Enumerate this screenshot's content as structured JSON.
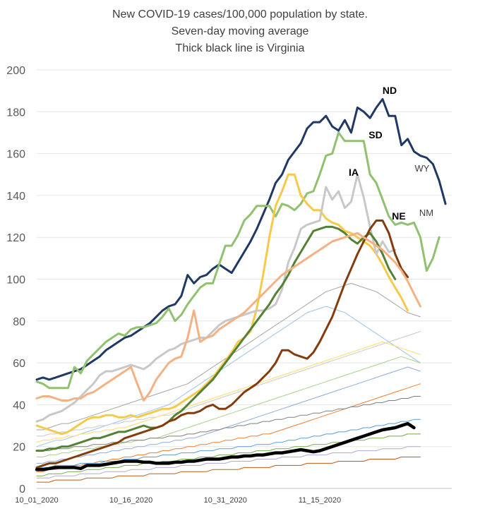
{
  "chart_data": {
    "type": "line",
    "title": "New COVID-19 cases/100,000 population by state.",
    "subtitle_lines": [
      "Seven-day moving average",
      "Thick black line is Virginia"
    ],
    "xlabel": "",
    "ylabel": "",
    "ylim": [
      0,
      200
    ],
    "yticks": [
      "0",
      "20",
      "40",
      "60",
      "80",
      "100",
      "120",
      "140",
      "160",
      "180",
      "200"
    ],
    "xticks": [
      "10_01_2020",
      "10_16_2020",
      "10_31_2020",
      "11_15_2020"
    ],
    "x_count": 67,
    "grid": true,
    "legend": "none",
    "annotations": [
      "ND",
      "SD",
      "IA",
      "WY",
      "NE",
      "NM"
    ],
    "series": [
      {
        "name": "ND",
        "color": "#1f3864",
        "width": 3,
        "values": [
          52,
          53,
          52,
          53,
          54,
          55,
          56,
          57,
          59,
          61,
          63,
          66,
          68,
          70,
          72,
          73,
          75,
          77,
          79,
          82,
          85,
          87,
          88,
          92,
          102,
          98,
          101,
          102,
          105,
          107,
          105,
          103,
          108,
          113,
          118,
          124,
          131,
          138,
          146,
          150,
          157,
          161,
          165,
          172,
          175,
          175,
          178,
          173,
          171,
          176,
          170,
          182,
          180,
          177,
          182,
          186,
          178,
          178,
          164,
          167,
          161,
          159,
          158,
          155,
          147,
          136
        ]
      },
      {
        "name": "SD",
        "color": "#8fc16f",
        "width": 3,
        "values": [
          51,
          50,
          48,
          48,
          48,
          48,
          58,
          55,
          61,
          64,
          67,
          70,
          72,
          74,
          73,
          76,
          77,
          77,
          78,
          79,
          82,
          86,
          80,
          83,
          88,
          92,
          96,
          98,
          98,
          107,
          116,
          116,
          121,
          128,
          131,
          135,
          135,
          135,
          130,
          136,
          135,
          133,
          136,
          141,
          142,
          150,
          159,
          160,
          170,
          166,
          166,
          166,
          166,
          150,
          146,
          138,
          130,
          126,
          127,
          126,
          127,
          120,
          104,
          110,
          120
        ]
      },
      {
        "name": "IA",
        "color": "#f7c948",
        "width": 3,
        "values": [
          30,
          29,
          28,
          27,
          26,
          27,
          29,
          31,
          33,
          34,
          34,
          35,
          35,
          34,
          34,
          35,
          34,
          35,
          36,
          37,
          38,
          38,
          39,
          41,
          43,
          45,
          47,
          50,
          53,
          57,
          61,
          65,
          70,
          72,
          75,
          86,
          102,
          120,
          135,
          142,
          150,
          150,
          140,
          136,
          133,
          133,
          129,
          127,
          126,
          123,
          122,
          120,
          118,
          116,
          112,
          107,
          101,
          96,
          91,
          85
        ]
      },
      {
        "name": "WY",
        "color": "#c8c8c8",
        "width": 3,
        "values": [
          32,
          33,
          35,
          36,
          37,
          39,
          41,
          44,
          47,
          50,
          54,
          56,
          56,
          57,
          58,
          59,
          58,
          57,
          59,
          62,
          64,
          66,
          67,
          69,
          70,
          71,
          72,
          72,
          75,
          78,
          80,
          81,
          82,
          83,
          84,
          85,
          85,
          86,
          88,
          95,
          108,
          115,
          124,
          126,
          127,
          128,
          144,
          138,
          142,
          134,
          137,
          150,
          139,
          125,
          112,
          118,
          113,
          114
        ]
      },
      {
        "name": "NE",
        "color": "#548235",
        "width": 3,
        "values": [
          18,
          18,
          19,
          19,
          20,
          20,
          21,
          22,
          23,
          24,
          24,
          25,
          26,
          27,
          27,
          28,
          29,
          30,
          29,
          29,
          30,
          32,
          35,
          37,
          40,
          43,
          46,
          49,
          52,
          56,
          60,
          64,
          68,
          72,
          76,
          80,
          84,
          88,
          93,
          97,
          102,
          108,
          113,
          118,
          123,
          124,
          125,
          125,
          124,
          122,
          119,
          117,
          120,
          122,
          118,
          112,
          105,
          100
        ]
      },
      {
        "name": "NM",
        "color": "#843c0c",
        "width": 3,
        "values": [
          10,
          11,
          12,
          12,
          13,
          14,
          15,
          16,
          17,
          18,
          19,
          20,
          21,
          22,
          24,
          25,
          26,
          27,
          28,
          29,
          30,
          32,
          33,
          35,
          36,
          36,
          37,
          39,
          40,
          38,
          38,
          40,
          43,
          46,
          48,
          50,
          53,
          56,
          60,
          66,
          66,
          64,
          63,
          62,
          65,
          70,
          76,
          82,
          90,
          98,
          105,
          112,
          118,
          124,
          128,
          128,
          122,
          112,
          105,
          101
        ]
      },
      {
        "name": "",
        "color": "#f4b183",
        "width": 3,
        "values": [
          43,
          44,
          44,
          43,
          42,
          42,
          43,
          43,
          45,
          46,
          48,
          50,
          52,
          54,
          56,
          58,
          50,
          42,
          46,
          52,
          56,
          60,
          62,
          63,
          72,
          85,
          70,
          72,
          73,
          76,
          78,
          80,
          82,
          84,
          87,
          90,
          93,
          96,
          99,
          102,
          104,
          106,
          108,
          110,
          112,
          114,
          116,
          118,
          119,
          120,
          121,
          122,
          120,
          118,
          116,
          114,
          111,
          108,
          104,
          99,
          93,
          87
        ]
      },
      {
        "name": "Virginia",
        "color": "#000000",
        "width": 4.5,
        "values": [
          9,
          9,
          9.5,
          10,
          10,
          10,
          10,
          9.5,
          11,
          11,
          11,
          11.5,
          12,
          12.5,
          13,
          13,
          13,
          12.5,
          12.5,
          12,
          12,
          12,
          12.5,
          12.5,
          13,
          13,
          13.5,
          14,
          14,
          14,
          14.5,
          15,
          15,
          15.5,
          15.5,
          16,
          16,
          16.5,
          17,
          17,
          17.5,
          18,
          18.5,
          18,
          17.5,
          18,
          19,
          20,
          21,
          22,
          23,
          24,
          25,
          26,
          27,
          28,
          28.5,
          29,
          30,
          31,
          29
        ]
      }
    ],
    "background_series": [
      {
        "color": "#a6a6a6",
        "values": [
          28,
          28,
          29,
          30,
          31,
          31,
          32,
          33,
          34,
          35,
          36,
          37,
          38,
          39,
          40,
          41,
          42,
          43,
          44,
          45,
          46,
          47,
          48,
          49,
          50,
          52,
          54,
          56,
          58,
          60,
          62,
          64,
          66,
          68,
          70,
          72,
          74,
          76,
          78,
          80,
          82,
          84,
          86,
          88,
          90,
          92,
          94,
          95,
          96,
          97,
          98,
          97,
          96,
          95,
          94,
          92,
          90,
          88,
          86,
          84,
          83,
          82
        ]
      },
      {
        "color": "#9dc3e6",
        "values": [
          20,
          21,
          22,
          23,
          23,
          24,
          25,
          26,
          27,
          28,
          29,
          30,
          31,
          32,
          33,
          34,
          35,
          36,
          37,
          38,
          39,
          40,
          42,
          44,
          46,
          48,
          50,
          52,
          54,
          56,
          58,
          60,
          62,
          64,
          66,
          68,
          70,
          72,
          74,
          76,
          78,
          80,
          82,
          84,
          85,
          86,
          87,
          86,
          85,
          84,
          82,
          80,
          78,
          76,
          74,
          72,
          70,
          68,
          66,
          64,
          62,
          60
        ]
      },
      {
        "color": "#c9c9c9",
        "values": [
          25,
          25,
          26,
          26,
          27,
          27,
          28,
          28,
          29,
          29,
          30,
          30,
          31,
          31,
          32,
          32,
          33,
          33,
          34,
          34,
          35,
          35,
          36,
          37,
          38,
          39,
          40,
          41,
          42,
          43,
          44,
          45,
          46,
          47,
          48,
          49,
          50,
          51,
          52,
          53,
          54,
          55,
          56,
          57,
          58,
          59,
          60,
          61,
          62,
          63,
          64,
          65,
          66,
          67,
          68,
          69,
          70,
          71,
          72,
          73,
          74,
          75
        ]
      },
      {
        "color": "#ffd966",
        "values": [
          22,
          23,
          23,
          24,
          24,
          25,
          25,
          26,
          26,
          27,
          27,
          28,
          28,
          29,
          29,
          30,
          31,
          32,
          33,
          34,
          35,
          36,
          37,
          38,
          39,
          40,
          41,
          42,
          43,
          44,
          45,
          46,
          47,
          48,
          49,
          50,
          51,
          52,
          53,
          54,
          55,
          56,
          57,
          58,
          59,
          60,
          61,
          62,
          63,
          64,
          65,
          66,
          67,
          68,
          69,
          70,
          69,
          68,
          67,
          66,
          65,
          64
        ]
      },
      {
        "color": "#a9d18e",
        "values": [
          15,
          15,
          16,
          16,
          17,
          17,
          18,
          18,
          19,
          19,
          20,
          20,
          21,
          21,
          22,
          22,
          23,
          23,
          24,
          24,
          25,
          26,
          27,
          28,
          29,
          30,
          31,
          32,
          33,
          34,
          35,
          36,
          37,
          38,
          39,
          40,
          41,
          42,
          43,
          44,
          45,
          46,
          47,
          48,
          49,
          50,
          51,
          52,
          53,
          54,
          55,
          56,
          57,
          58,
          59,
          60,
          61,
          62,
          63,
          62,
          61,
          60
        ]
      },
      {
        "color": "#8faadc",
        "values": [
          12,
          12,
          13,
          13,
          14,
          14,
          15,
          15,
          16,
          16,
          17,
          17,
          18,
          18,
          19,
          19,
          20,
          20,
          21,
          21,
          22,
          22,
          23,
          23,
          24,
          24,
          25,
          26,
          27,
          28,
          29,
          30,
          31,
          32,
          33,
          34,
          35,
          36,
          37,
          38,
          39,
          40,
          41,
          42,
          43,
          44,
          45,
          46,
          47,
          48,
          49,
          50,
          51,
          52,
          53,
          54,
          55,
          56,
          57,
          58,
          57,
          56
        ]
      },
      {
        "color": "#ed7d31",
        "values": [
          8,
          8,
          9,
          9,
          10,
          10,
          11,
          11,
          12,
          12,
          13,
          13,
          14,
          14,
          15,
          15,
          16,
          16,
          17,
          17,
          18,
          18,
          19,
          19,
          20,
          20,
          21,
          21,
          22,
          22,
          23,
          23,
          24,
          24,
          25,
          25,
          26,
          26,
          27,
          28,
          29,
          30,
          31,
          32,
          33,
          34,
          35,
          36,
          37,
          38,
          39,
          40,
          41,
          42,
          43,
          44,
          45,
          46,
          47,
          48,
          49,
          50
        ]
      },
      {
        "color": "#7f7f7f",
        "values": [
          18,
          18,
          18,
          19,
          19,
          19,
          20,
          20,
          20,
          21,
          21,
          21,
          22,
          22,
          22,
          23,
          23,
          23,
          24,
          24,
          24,
          25,
          25,
          25,
          26,
          26,
          27,
          27,
          28,
          28,
          29,
          29,
          30,
          30,
          31,
          31,
          32,
          32,
          33,
          33,
          34,
          34,
          35,
          35,
          36,
          36,
          37,
          37,
          38,
          38,
          39,
          39,
          40,
          40,
          41,
          41,
          42,
          42,
          43,
          43,
          44,
          44
        ]
      },
      {
        "color": "#70ad47",
        "values": [
          6,
          6,
          7,
          7,
          7,
          8,
          8,
          8,
          9,
          9,
          9,
          10,
          10,
          10,
          11,
          11,
          11,
          12,
          12,
          12,
          13,
          13,
          13,
          14,
          14,
          14,
          15,
          15,
          15,
          16,
          16,
          16,
          17,
          17,
          17,
          18,
          18,
          18,
          19,
          19,
          19,
          20,
          20,
          20,
          21,
          21,
          21,
          22,
          22,
          22,
          23,
          23,
          23,
          24,
          24,
          24,
          25,
          25,
          25,
          26,
          26,
          26
        ]
      },
      {
        "color": "#5b9bd5",
        "values": [
          10,
          10,
          10,
          11,
          11,
          11,
          11,
          12,
          12,
          12,
          12,
          13,
          13,
          13,
          14,
          14,
          14,
          15,
          15,
          15,
          16,
          16,
          16,
          17,
          17,
          17,
          18,
          18,
          18,
          19,
          19,
          19,
          20,
          20,
          20,
          21,
          21,
          21,
          22,
          22,
          23,
          23,
          24,
          24,
          25,
          25,
          26,
          26,
          27,
          27,
          28,
          28,
          29,
          29,
          30,
          30,
          31,
          31,
          32,
          32,
          33,
          33
        ]
      },
      {
        "color": "#b4a7d6",
        "values": [
          5,
          5,
          5,
          6,
          6,
          6,
          6,
          7,
          7,
          7,
          7,
          8,
          8,
          8,
          8,
          9,
          9,
          9,
          9,
          10,
          10,
          10,
          10,
          11,
          11,
          11,
          11,
          12,
          12,
          12,
          12,
          13,
          13,
          13,
          13,
          14,
          14,
          14,
          14,
          15,
          15,
          15,
          15,
          16,
          16,
          16,
          16,
          17,
          17,
          17,
          17,
          18,
          18,
          18,
          18,
          19,
          19,
          19,
          19,
          20,
          20,
          20
        ]
      },
      {
        "color": "#c55a11",
        "values": [
          3,
          3,
          3,
          4,
          4,
          4,
          4,
          4,
          5,
          5,
          5,
          5,
          5,
          6,
          6,
          6,
          6,
          6,
          7,
          7,
          7,
          7,
          7,
          8,
          8,
          8,
          8,
          8,
          9,
          9,
          9,
          9,
          9,
          10,
          10,
          10,
          10,
          10,
          11,
          11,
          11,
          11,
          11,
          12,
          12,
          12,
          12,
          12,
          13,
          13,
          13,
          13,
          13,
          14,
          14,
          14,
          14,
          14,
          15,
          15,
          15,
          15
        ]
      }
    ]
  }
}
